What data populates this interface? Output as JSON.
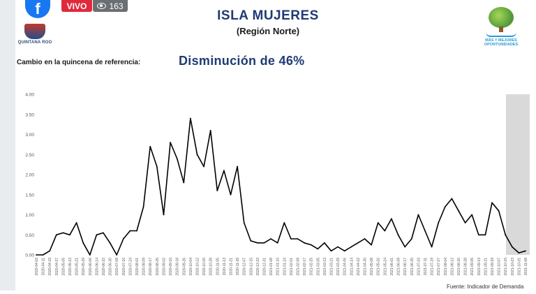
{
  "overlay": {
    "facebook_glyph": "f",
    "live_label": "VIVO",
    "viewers_count": "163",
    "icons": [
      "facebook-icon",
      "eye-icon"
    ]
  },
  "header": {
    "left_logo_name": "QUINTANA ROO",
    "title": "ISLA MUJERES",
    "subtitle": "(Región Norte)",
    "right_logo_line1": "MÁS Y MEJORES",
    "right_logo_line2": "OPORTUNIDADES"
  },
  "reference": {
    "label": "Cambio en la quincena de referencia:",
    "value": "Disminución de 46%"
  },
  "colors": {
    "title": "#1f3b73",
    "line": "#000000",
    "shade": "#d9d9d9",
    "live": "#e02a3b",
    "facebook": "#1877f2"
  },
  "chart_data": {
    "type": "line",
    "y_ticks": [
      "0.00",
      "0.50",
      "1.00",
      "1.50",
      "2.00",
      "2.50",
      "3.00",
      "3.50",
      "4.00"
    ],
    "ylim": [
      0,
      4
    ],
    "grid": false,
    "shaded_region": "last-two-weeks",
    "x_tick_labels": [
      "2020-04-03",
      "2020-04-11",
      "2020-04-19",
      "2020-04-27",
      "2020-05-05",
      "2020-05-13",
      "2020-05-21",
      "2020-05-29",
      "2020-06-06",
      "2020-06-14",
      "2020-06-22",
      "2020-06-30",
      "2020-07-08",
      "2020-07-16",
      "2020-07-24",
      "2020-08-01",
      "2020-08-09",
      "2020-08-17",
      "2020-08-25",
      "2020-09-02",
      "2020-09-10",
      "2020-09-18",
      "2020-09-26",
      "2020-10-04",
      "2020-10-12",
      "2020-10-20",
      "2020-10-28",
      "2020-11-05",
      "2020-11-13",
      "2020-11-21",
      "2020-11-29",
      "2020-12-07",
      "2020-12-15",
      "2020-12-23",
      "2020-12-31",
      "2021-01-08",
      "2021-01-16",
      "2021-01-24",
      "2021-02-01",
      "2021-02-09",
      "2021-02-17",
      "2021-02-25",
      "2021-03-05",
      "2021-03-13",
      "2021-03-21",
      "2021-03-29",
      "2021-04-06",
      "2021-04-14",
      "2021-04-22",
      "2021-04-30",
      "2021-05-08",
      "2021-05-16",
      "2021-05-24",
      "2021-06-01",
      "2021-06-09",
      "2021-06-17",
      "2021-06-25",
      "2021-07-03",
      "2021-07-11",
      "2021-07-19",
      "2021-07-27",
      "2021-08-04",
      "2021-08-12",
      "2021-08-20",
      "2021-08-28",
      "2021-09-05",
      "2021-09-13",
      "2021-09-21",
      "2021-09-29",
      "2021-10-07",
      "2021-10-15",
      "2021-10-23",
      "2021-10-31",
      "2021-11-08"
    ],
    "series": [
      {
        "x_index": [
          0,
          1,
          2,
          3,
          4,
          5,
          6,
          7,
          8,
          9,
          10,
          11,
          12,
          13,
          14,
          15,
          16,
          17,
          18,
          19,
          20,
          21,
          22,
          23,
          24,
          25,
          26,
          27,
          28,
          29,
          30,
          31,
          32,
          33,
          34,
          35,
          36,
          37,
          38,
          39,
          40,
          41,
          42,
          43,
          44,
          45,
          46,
          47,
          48,
          49,
          50,
          51,
          52,
          53,
          54,
          55,
          56,
          57,
          58,
          59,
          60,
          61,
          62,
          63,
          64,
          65,
          66,
          67,
          68,
          69,
          70,
          71,
          72,
          73
        ],
        "values": [
          0,
          0,
          0.1,
          0.5,
          0.55,
          0.5,
          0.8,
          0.3,
          0,
          0.5,
          0.55,
          0.3,
          0,
          0.4,
          0.6,
          0.6,
          1.2,
          2.7,
          2.2,
          1.0,
          2.8,
          2.4,
          1.8,
          3.4,
          2.5,
          2.2,
          3.1,
          1.6,
          2.1,
          1.5,
          2.2,
          0.8,
          0.35,
          0.3,
          0.3,
          0.4,
          0.3,
          0.8,
          0.4,
          0.4,
          0.3,
          0.25,
          0.15,
          0.3,
          0.1,
          0.2,
          0.1,
          0.2,
          0.3,
          0.4,
          0.25,
          0.8,
          0.6,
          0.9,
          0.5,
          0.2,
          0.4,
          1.0,
          0.6,
          0.2,
          0.8,
          1.2,
          1.4,
          1.1,
          0.8,
          1.0,
          0.5,
          0.5,
          1.3,
          1.1,
          0.5,
          0.2,
          0.05,
          0.1
        ]
      }
    ]
  },
  "footer": {
    "note": "Fuente: Indicador de Demanda"
  }
}
